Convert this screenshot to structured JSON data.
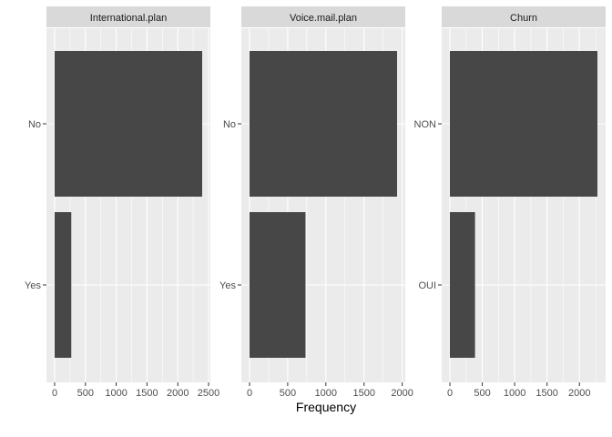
{
  "chart_data": {
    "type": "bar",
    "orientation": "horizontal",
    "xlabel": "Frequency",
    "ylabel": "",
    "grid": true,
    "facets": [
      {
        "title": "International.plan",
        "categories": [
          "No",
          "Yes"
        ],
        "values": [
          2396,
          270
        ],
        "xlim": [
          0,
          2500
        ],
        "xticks": [
          0,
          500,
          1000,
          1500,
          2000,
          2500
        ]
      },
      {
        "title": "Voice.mail.plan",
        "categories": [
          "No",
          "Yes"
        ],
        "values": [
          1933,
          733
        ],
        "xlim": [
          0,
          2000
        ],
        "xticks": [
          0,
          500,
          1000,
          1500,
          2000
        ]
      },
      {
        "title": "Churn",
        "categories": [
          "NON",
          "OUI"
        ],
        "values": [
          2278,
          388
        ],
        "xlim": [
          0,
          2000
        ],
        "xticks": [
          0,
          500,
          1000,
          1500,
          2000
        ]
      }
    ]
  }
}
